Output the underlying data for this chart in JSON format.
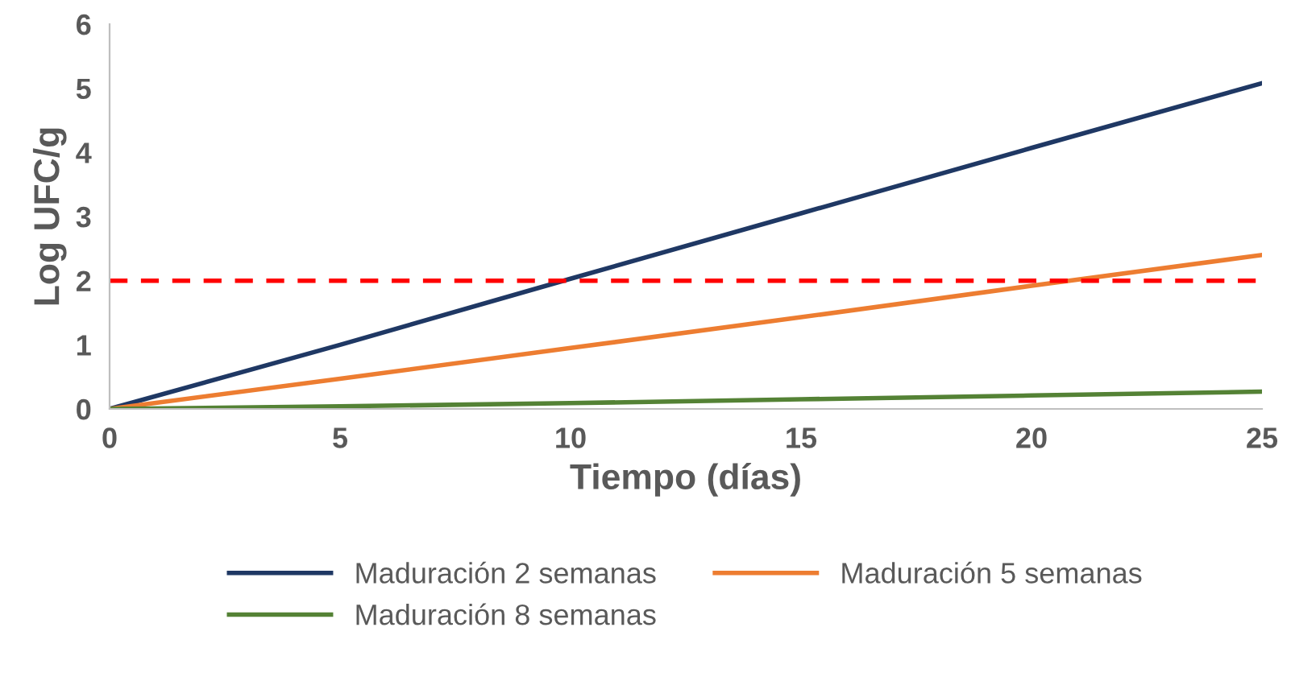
{
  "chart_data": {
    "type": "line",
    "xlabel": "Tiempo (días)",
    "ylabel": "Log UFC/g",
    "xlim": [
      0,
      25
    ],
    "ylim": [
      0,
      6
    ],
    "xticks": [
      0,
      5,
      10,
      15,
      20,
      25
    ],
    "yticks": [
      0,
      1,
      2,
      3,
      4,
      5,
      6
    ],
    "grid": false,
    "legend": "bottom",
    "line_style": "solid",
    "marker": "none",
    "x": [
      0,
      5,
      10,
      15,
      20,
      25
    ],
    "series": [
      {
        "name": "Maduración 2 semanas",
        "color": "#1f3864",
        "values": [
          0,
          1.0,
          2.03,
          3.05,
          4.07,
          5.08
        ]
      },
      {
        "name": "Maduración 5 semanas",
        "color": "#ed7d31",
        "values": [
          0,
          0.47,
          0.95,
          1.43,
          1.92,
          2.4
        ]
      },
      {
        "name": "Maduración 8 semanas",
        "color": "#548235",
        "values": [
          0,
          0.04,
          0.09,
          0.15,
          0.21,
          0.27
        ]
      }
    ],
    "ref_lines": [
      {
        "axis": "y",
        "value": 2,
        "color": "#ff0000",
        "line_style": "dashed"
      }
    ]
  }
}
